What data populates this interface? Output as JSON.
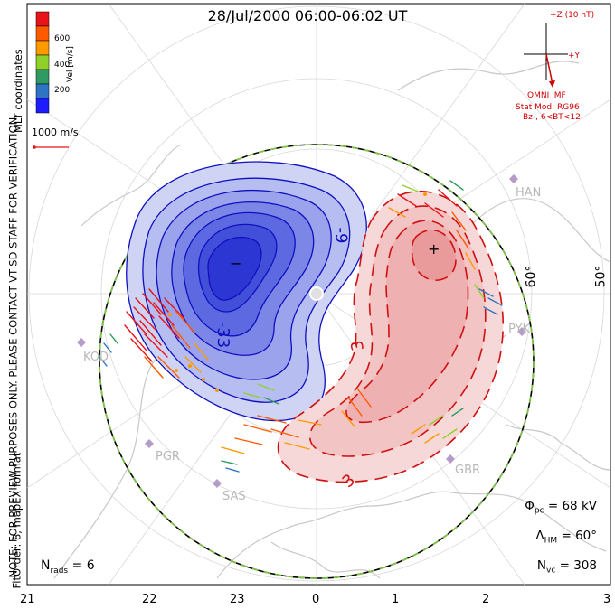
{
  "title": "28/Jul/2000 06:00-06:02 UT",
  "note_line1": "NOTE: FOR PREVIEW PURPOSES ONLY. PLEASE CONTACT VT-SD STAFF FOR VERIFICATION.",
  "note_line2": "FitOrder: 8, mapEX format",
  "coord_label": "MLT coordinates",
  "color_scale": {
    "label": "Vel [m/s]",
    "ticks": [
      "600",
      "400",
      "200"
    ],
    "colors": [
      "#1c1cff",
      "#2e74c2",
      "#2f9a63",
      "#8fd12b",
      "#ff9900",
      "#ff5a00",
      "#e8141a"
    ]
  },
  "reference_vector": "1000 m/s",
  "imf": {
    "z_label": "+Z (10 nT)",
    "y_label": "+Y",
    "source": "OMNI IMF",
    "model": "Stat Mod: RG96",
    "model_cond": "Bz-, 6<BT<12"
  },
  "contour_labels": [
    "-9",
    "-33",
    "3",
    "3"
  ],
  "extrema": [
    "−",
    "+"
  ],
  "latitude_labels": [
    "60°",
    "50°"
  ],
  "radar_sites": [
    "HAN",
    "PYK",
    "KOD",
    "PGR",
    "SAS",
    "GBR"
  ],
  "stats": {
    "phi_pc": "68 kV",
    "lambda_hm": "60°",
    "n_vc": "308"
  },
  "n_rads": "6",
  "mlt_ticks": [
    "21",
    "22",
    "23",
    "0",
    "1",
    "2",
    "3"
  ],
  "colors": {
    "negative_fill": "#3030f0",
    "positive_fill": "#e03030",
    "negative_line": "#1010c0",
    "positive_line": "#d01010",
    "boundary": "#7ec843",
    "coast": "#c8c8c8"
  }
}
